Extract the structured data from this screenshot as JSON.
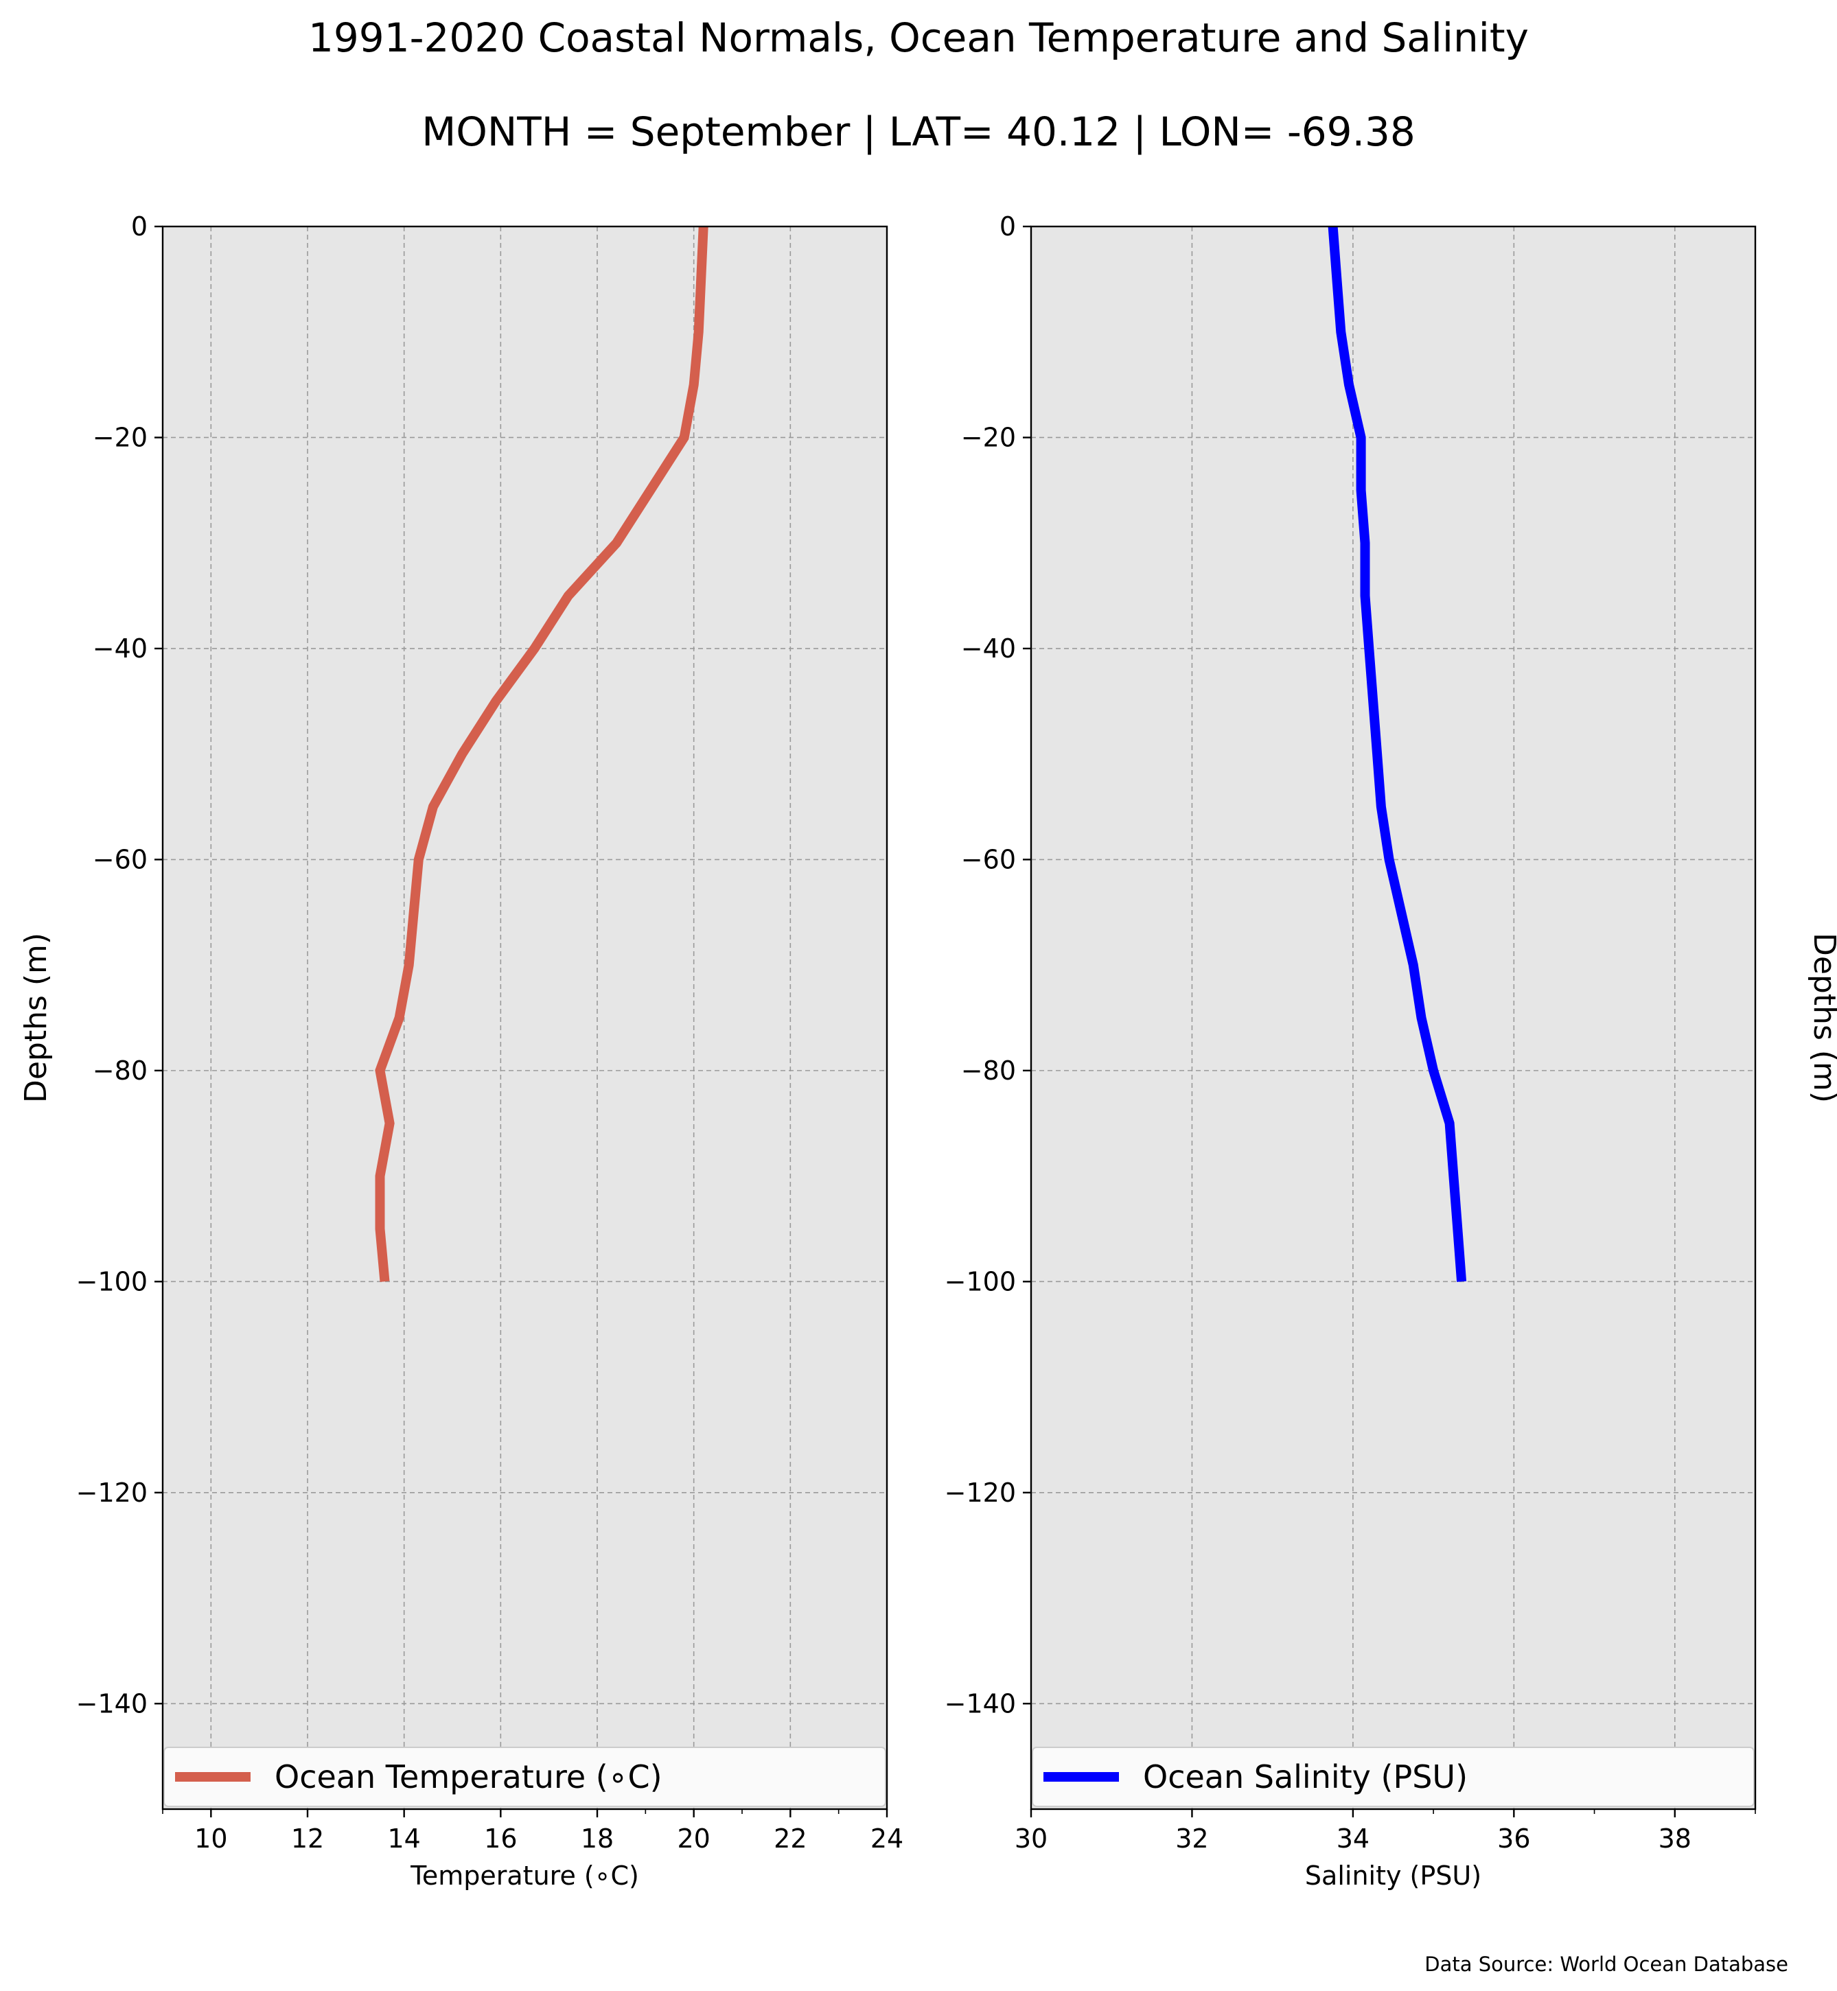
{
  "title": "1991-2020 Coastal Normals, Ocean Temperature and Salinity",
  "subtitle": "MONTH = September | LAT= 40.12 | LON= -69.38",
  "source": "Data Source: World Ocean Database",
  "colors": {
    "background": "#e6e6e6",
    "temperature": "#d45f4d",
    "salinity": "#0000ff"
  },
  "chart_data": [
    {
      "type": "line",
      "xlabel": "Temperature (∘C)",
      "ylabel": "Depths (m)",
      "xlim": [
        9,
        24
      ],
      "ylim": [
        -150,
        0
      ],
      "xticks": [
        10,
        12,
        14,
        16,
        18,
        20,
        22,
        24
      ],
      "yticks": [
        0,
        -20,
        -40,
        -60,
        -80,
        -100,
        -120,
        -140
      ],
      "yticklabels": [
        "0",
        "−20",
        "−40",
        "−60",
        "−80",
        "−100",
        "−120",
        "−140"
      ],
      "grid": true,
      "legend_position": "lower-center",
      "series": [
        {
          "name": "Ocean Temperature (∘C)",
          "color": "#d45f4d",
          "x": [
            20.2,
            20.15,
            20.1,
            20.0,
            19.8,
            19.1,
            18.4,
            17.4,
            16.7,
            15.9,
            15.2,
            14.6,
            14.3,
            14.2,
            14.1,
            13.9,
            13.5,
            13.7,
            13.5,
            13.5,
            13.6
          ],
          "y": [
            0,
            -5,
            -10,
            -15,
            -20,
            -25,
            -30,
            -35,
            -40,
            -45,
            -50,
            -55,
            -60,
            -65,
            -70,
            -75,
            -80,
            -85,
            -90,
            -95,
            -100
          ]
        }
      ]
    },
    {
      "type": "line",
      "xlabel": "Salinity (PSU)",
      "ylabel": "Depths (m)",
      "xlim": [
        30,
        39
      ],
      "ylim": [
        -150,
        0
      ],
      "xticks": [
        30,
        32,
        34,
        36,
        38
      ],
      "yticks": [
        0,
        -20,
        -40,
        -60,
        -80,
        -100,
        -120,
        -140
      ],
      "yticklabels": [
        "0",
        "−20",
        "−40",
        "−60",
        "−80",
        "−100",
        "−120",
        "−140"
      ],
      "grid": true,
      "legend_position": "lower-center",
      "series": [
        {
          "name": "Ocean Salinity (PSU)",
          "color": "#0000ff",
          "x": [
            33.75,
            33.8,
            33.85,
            33.95,
            34.1,
            34.1,
            34.15,
            34.15,
            34.2,
            34.25,
            34.3,
            34.35,
            34.45,
            34.6,
            34.75,
            34.85,
            35.0,
            35.2,
            35.25,
            35.3,
            35.35
          ],
          "y": [
            0,
            -5,
            -10,
            -15,
            -20,
            -25,
            -30,
            -35,
            -40,
            -45,
            -50,
            -55,
            -60,
            -65,
            -70,
            -75,
            -80,
            -85,
            -90,
            -95,
            -100
          ]
        }
      ]
    }
  ]
}
